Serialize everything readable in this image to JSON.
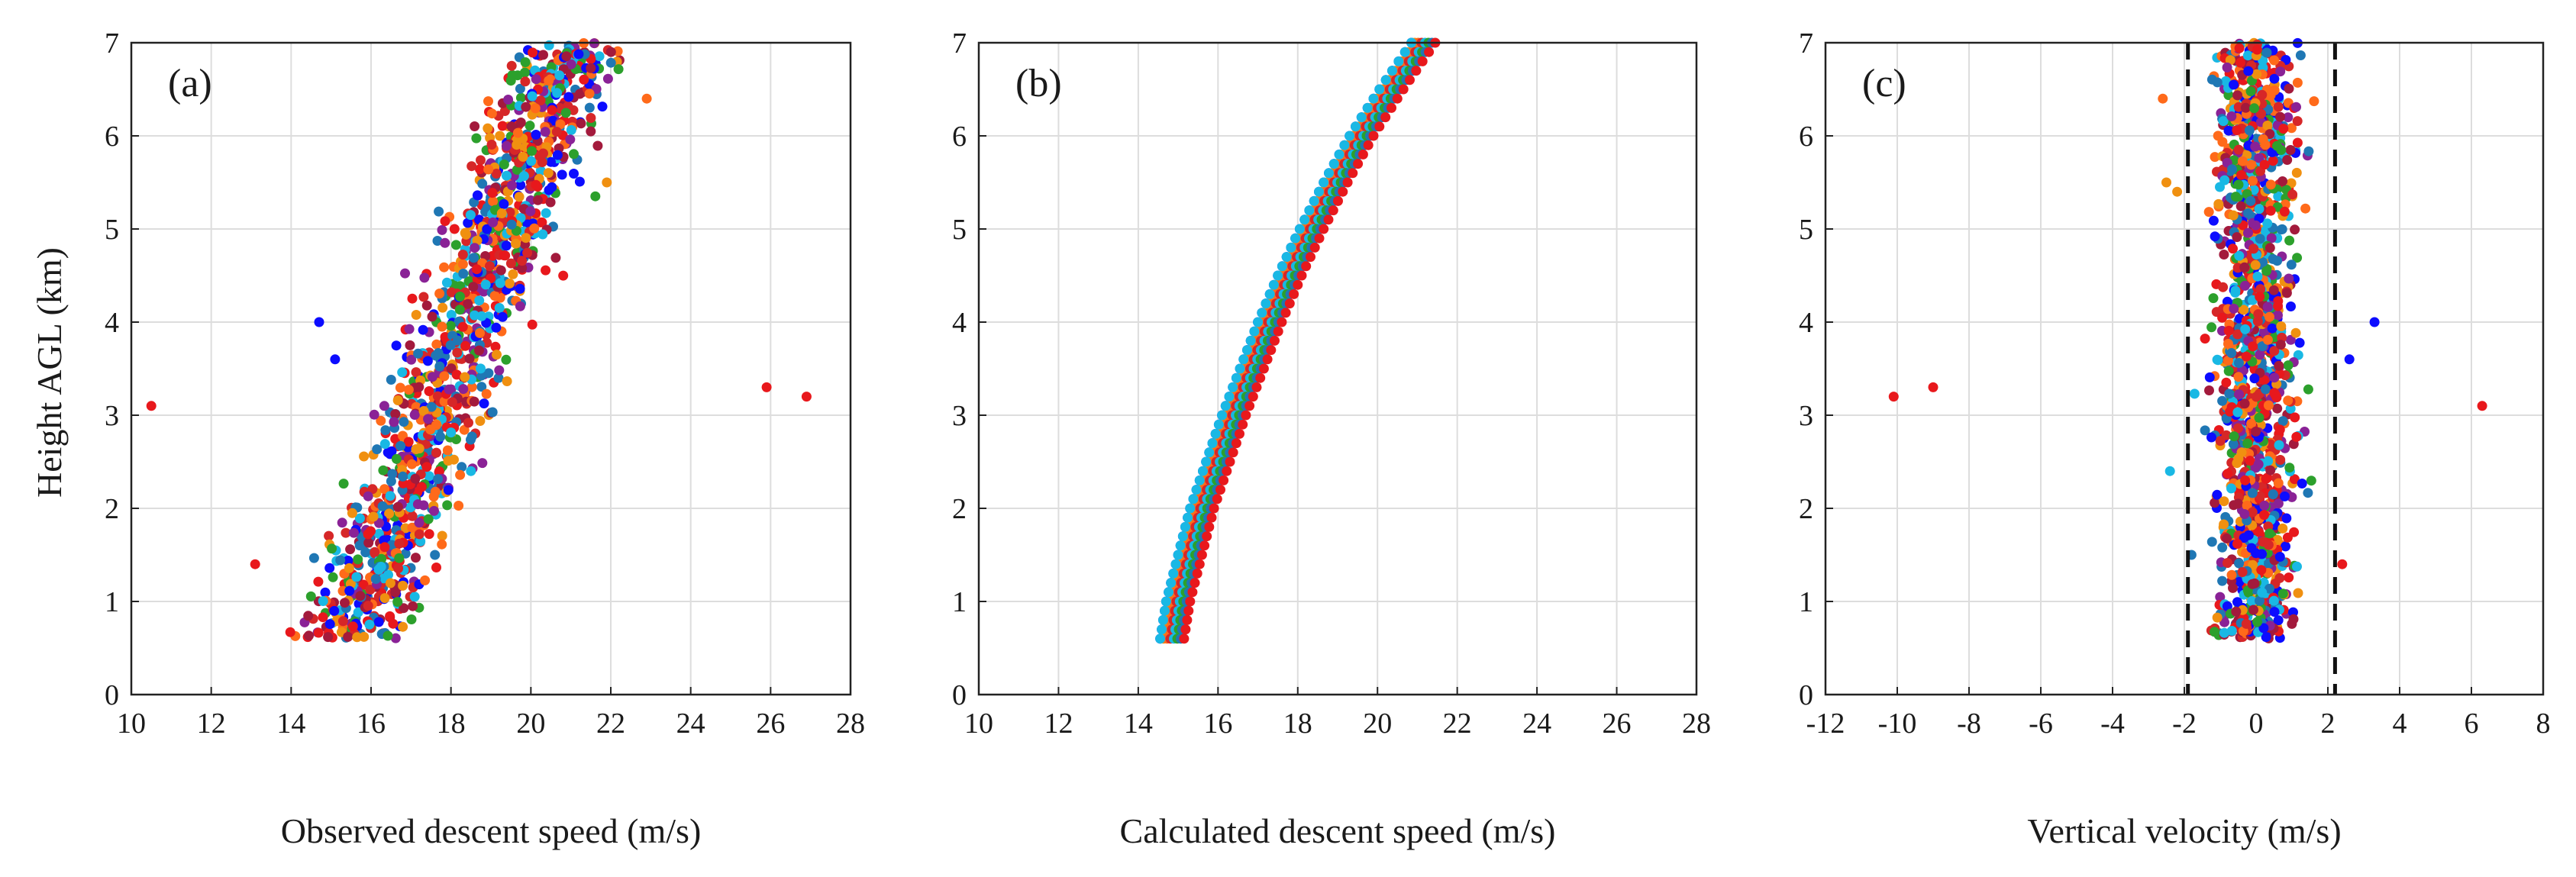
{
  "figure": {
    "ylabel": "Height AGL (km)",
    "series_colors": [
      "#0c0cff",
      "#e8181c",
      "#19b8e4",
      "#f09010",
      "#8a2296",
      "#2ca02c",
      "#ff6a1a",
      "#a31a3c",
      "#1f77b4",
      "#d62728"
    ]
  },
  "chart_data": [
    {
      "type": "scatter",
      "panel_label": "(a)",
      "title": "",
      "xlabel": "Observed descent speed (m/s)",
      "ylabel": "Height AGL (km)",
      "xlim": [
        10,
        28
      ],
      "ylim": [
        0,
        7
      ],
      "xticks": [
        10,
        12,
        14,
        16,
        18,
        20,
        22,
        24,
        26,
        28
      ],
      "yticks": [
        0,
        1,
        2,
        3,
        4,
        5,
        6,
        7
      ],
      "grid": true,
      "bulk_band": {
        "x_at_0_6km": 15.5,
        "x_at_7km": 21.0,
        "spread": 2.3,
        "height_range": [
          0.6,
          7.0
        ]
      },
      "outliers": [
        {
          "x": 10.5,
          "y": 3.1,
          "color": "#e8181c"
        },
        {
          "x": 13.1,
          "y": 1.4,
          "color": "#e8181c"
        },
        {
          "x": 14.7,
          "y": 4.0,
          "color": "#0c0cff"
        },
        {
          "x": 15.1,
          "y": 3.6,
          "color": "#0c0cff"
        },
        {
          "x": 17.6,
          "y": 1.5,
          "color": "#1f77b4"
        },
        {
          "x": 18.5,
          "y": 2.4,
          "color": "#19b8e4"
        },
        {
          "x": 21.9,
          "y": 5.5,
          "color": "#f09010"
        },
        {
          "x": 22.9,
          "y": 6.4,
          "color": "#ff6a1a"
        },
        {
          "x": 25.9,
          "y": 3.3,
          "color": "#e8181c"
        },
        {
          "x": 26.9,
          "y": 3.2,
          "color": "#e8181c"
        }
      ]
    },
    {
      "type": "scatter",
      "panel_label": "(b)",
      "title": "",
      "xlabel": "Calculated descent speed (m/s)",
      "ylabel": "",
      "xlim": [
        10,
        28
      ],
      "ylim": [
        0,
        7
      ],
      "xticks": [
        10,
        12,
        14,
        16,
        18,
        20,
        22,
        24,
        26,
        28
      ],
      "yticks": [
        0,
        1,
        2,
        3,
        4,
        5,
        6,
        7
      ],
      "grid": true,
      "curve": {
        "height": [
          0.6,
          1.0,
          1.5,
          2.0,
          2.5,
          3.0,
          3.5,
          4.0,
          4.5,
          5.0,
          5.5,
          6.0,
          6.5,
          7.0
        ],
        "speed": [
          14.85,
          15.0,
          15.3,
          15.6,
          16.0,
          16.4,
          16.85,
          17.3,
          17.8,
          18.35,
          18.95,
          19.6,
          20.35,
          21.15
        ]
      },
      "band_width": 0.6
    },
    {
      "type": "scatter",
      "panel_label": "(c)",
      "title": "",
      "xlabel": "Vertical velocity (m/s)",
      "ylabel": "",
      "xlim": [
        -12,
        8
      ],
      "ylim": [
        0,
        7
      ],
      "xticks": [
        -12,
        -10,
        -8,
        -6,
        -4,
        -2,
        0,
        2,
        4,
        6,
        8
      ],
      "yticks": [
        0,
        1,
        2,
        3,
        4,
        5,
        6,
        7
      ],
      "grid": true,
      "reference_lines": [
        -1.9,
        2.2
      ],
      "bulk_band": {
        "center": 0.0,
        "spread": 1.7,
        "height_range": [
          0.6,
          7.0
        ]
      },
      "outliers": [
        {
          "x": -10.1,
          "y": 3.2,
          "color": "#e8181c"
        },
        {
          "x": -9.0,
          "y": 3.3,
          "color": "#e8181c"
        },
        {
          "x": -2.5,
          "y": 5.5,
          "color": "#f09010"
        },
        {
          "x": -2.2,
          "y": 5.4,
          "color": "#f09010"
        },
        {
          "x": -2.6,
          "y": 6.4,
          "color": "#ff6a1a"
        },
        {
          "x": -2.4,
          "y": 2.4,
          "color": "#19b8e4"
        },
        {
          "x": -1.8,
          "y": 1.5,
          "color": "#1f77b4"
        },
        {
          "x": 2.4,
          "y": 1.4,
          "color": "#e8181c"
        },
        {
          "x": 2.6,
          "y": 3.6,
          "color": "#0c0cff"
        },
        {
          "x": 3.3,
          "y": 4.0,
          "color": "#0c0cff"
        },
        {
          "x": 6.3,
          "y": 3.1,
          "color": "#e8181c"
        }
      ]
    }
  ]
}
